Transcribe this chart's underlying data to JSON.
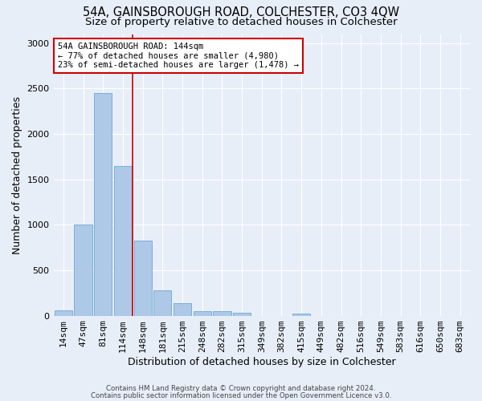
{
  "title": "54A, GAINSBOROUGH ROAD, COLCHESTER, CO3 4QW",
  "subtitle": "Size of property relative to detached houses in Colchester",
  "xlabel": "Distribution of detached houses by size in Colchester",
  "ylabel": "Number of detached properties",
  "categories": [
    "14sqm",
    "47sqm",
    "81sqm",
    "114sqm",
    "148sqm",
    "181sqm",
    "215sqm",
    "248sqm",
    "282sqm",
    "315sqm",
    "349sqm",
    "382sqm",
    "415sqm",
    "449sqm",
    "482sqm",
    "516sqm",
    "549sqm",
    "583sqm",
    "616sqm",
    "650sqm",
    "683sqm"
  ],
  "bar_heights": [
    55,
    1000,
    2450,
    1650,
    830,
    280,
    140,
    50,
    50,
    30,
    0,
    0,
    20,
    0,
    0,
    0,
    0,
    0,
    0,
    0,
    0
  ],
  "bar_color": "#aec8e8",
  "bar_edgecolor": "#6aaad4",
  "bg_color": "#e8eef8",
  "grid_color": "#ffffff",
  "vline_x": 3.5,
  "vline_color": "#cc0000",
  "annotation_text": "54A GAINSBOROUGH ROAD: 144sqm\n← 77% of detached houses are smaller (4,980)\n23% of semi-detached houses are larger (1,478) →",
  "annotation_box_color": "#ffffff",
  "annotation_box_edgecolor": "#cc0000",
  "footnote1": "Contains HM Land Registry data © Crown copyright and database right 2024.",
  "footnote2": "Contains public sector information licensed under the Open Government Licence v3.0.",
  "ylim": [
    0,
    3100
  ],
  "yticks": [
    0,
    500,
    1000,
    1500,
    2000,
    2500,
    3000
  ],
  "title_fontsize": 10.5,
  "subtitle_fontsize": 9.5,
  "xlabel_fontsize": 9,
  "ylabel_fontsize": 9,
  "tick_fontsize": 8,
  "annot_fontsize": 7.5,
  "footnote_fontsize": 6.2
}
